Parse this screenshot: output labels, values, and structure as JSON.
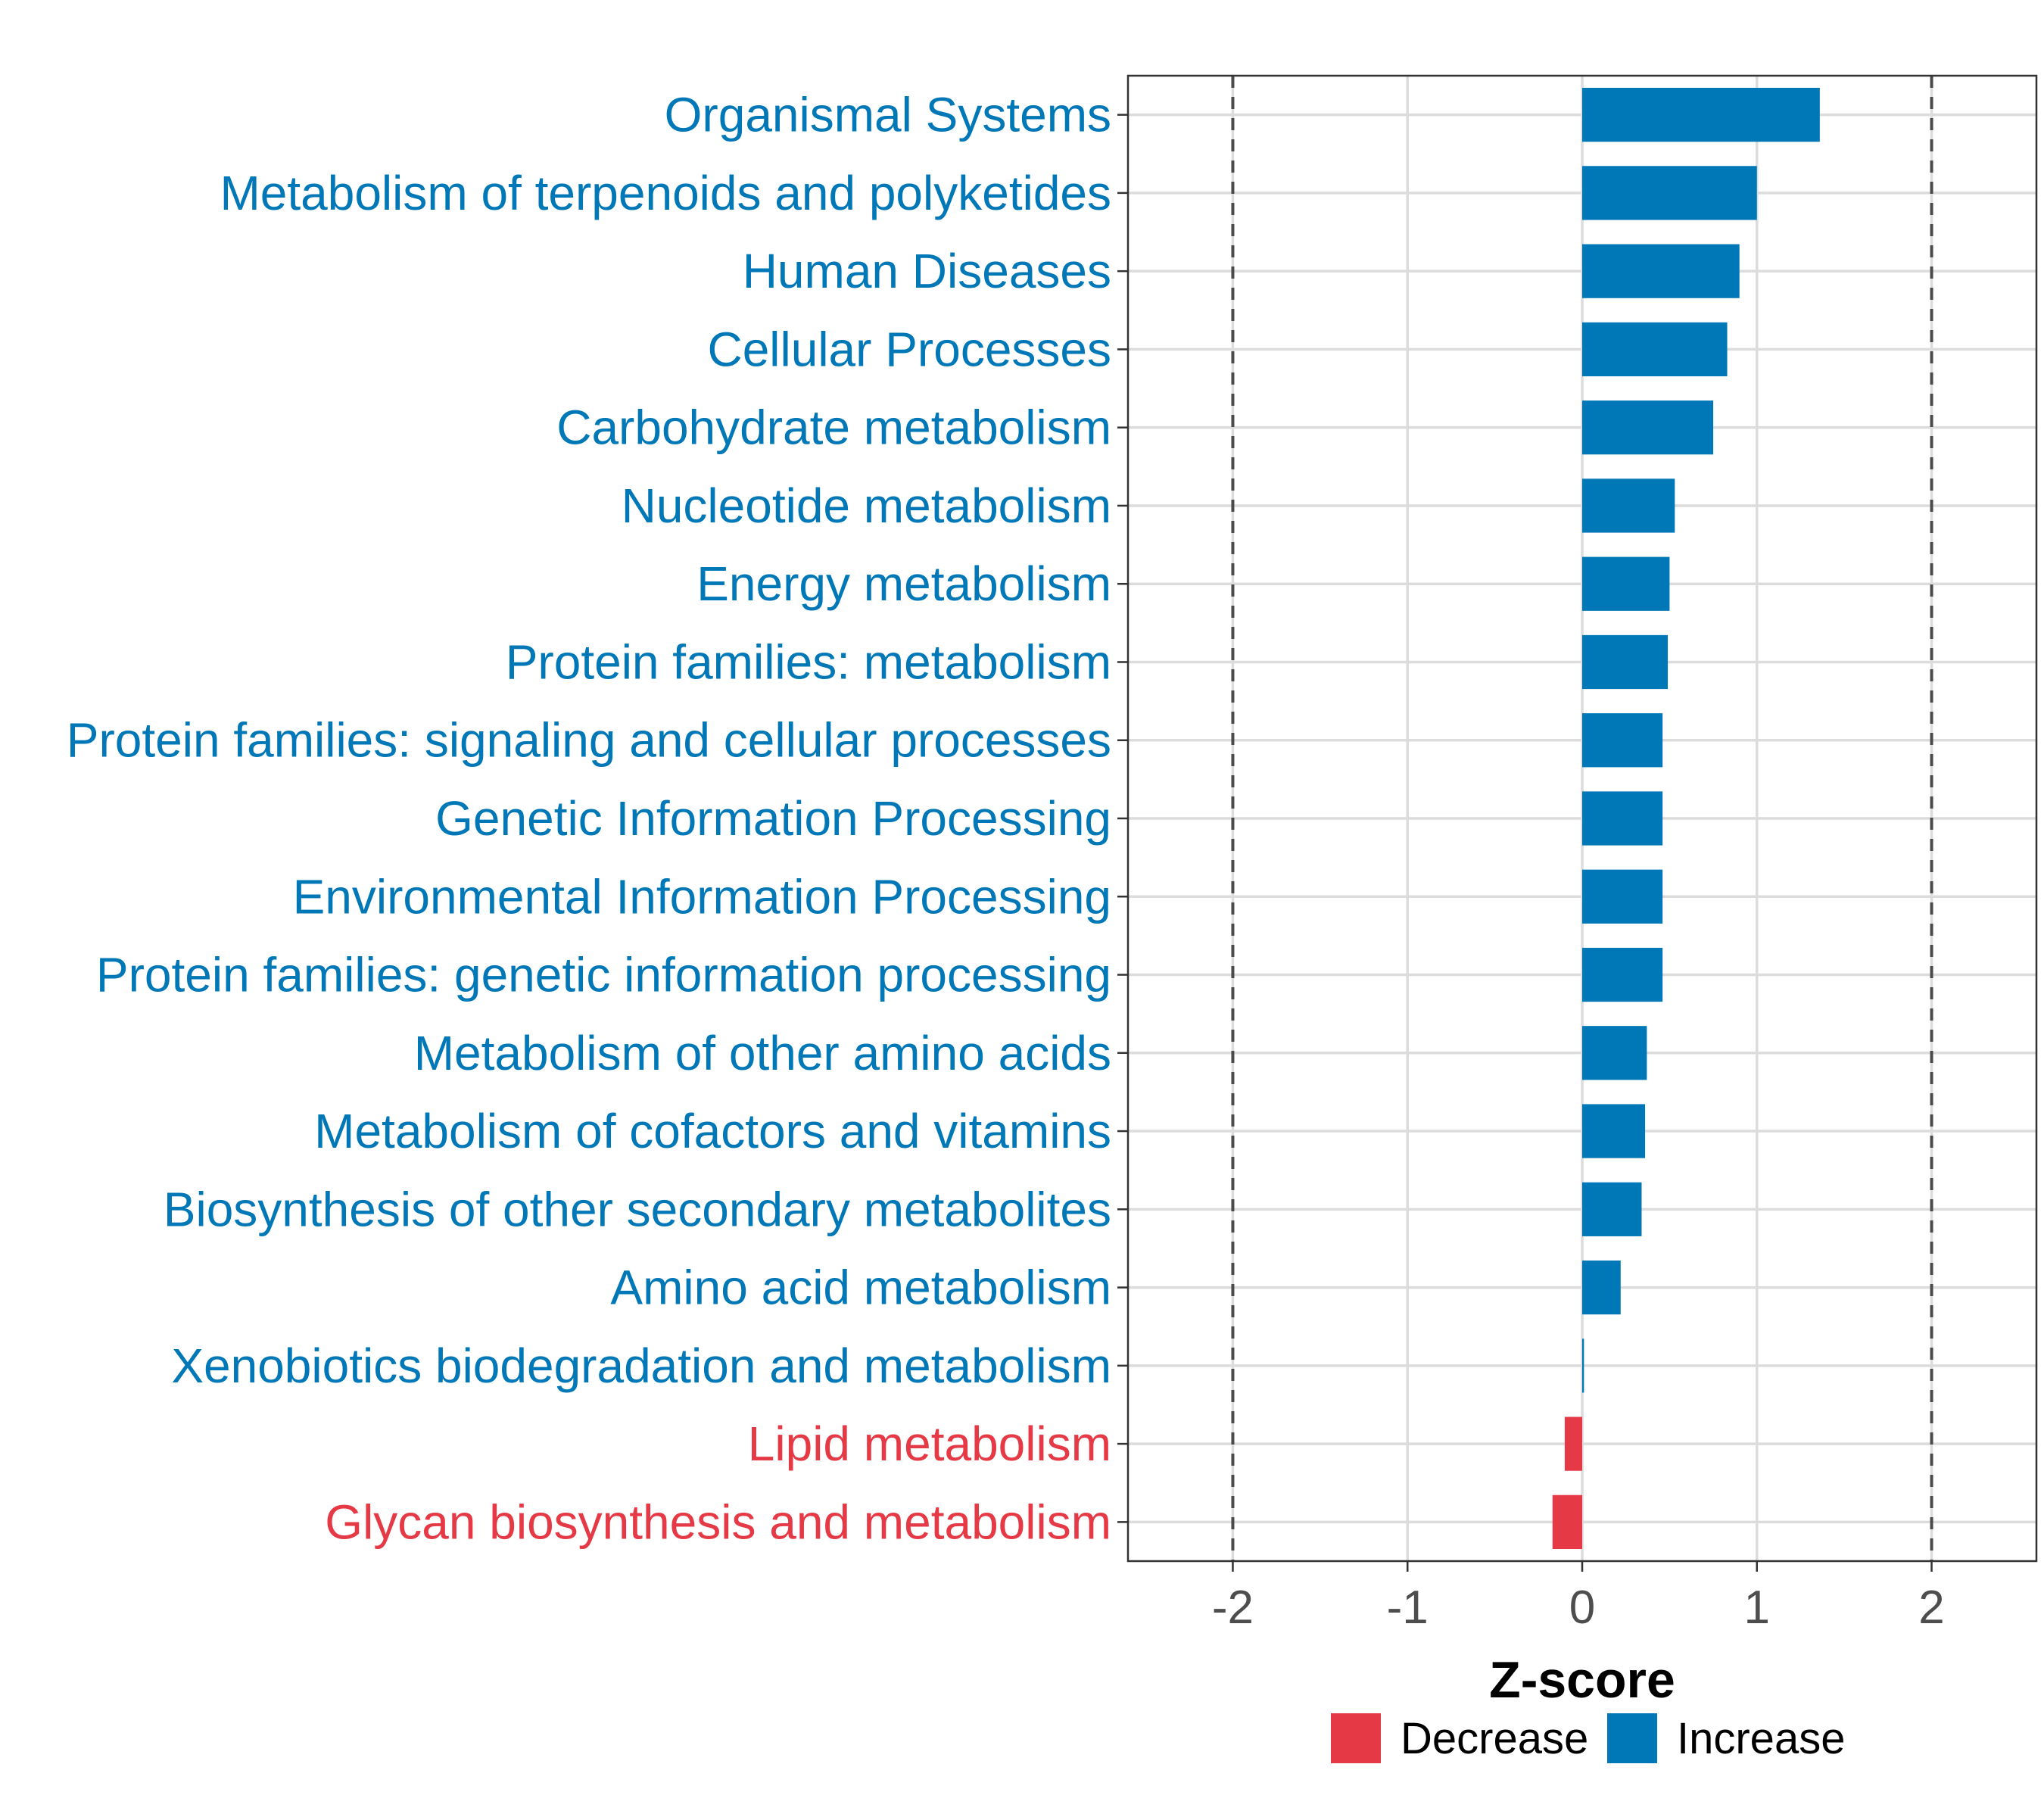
{
  "chart_data": {
    "type": "bar",
    "orientation": "horizontal",
    "categories": [
      "Organismal Systems",
      "Metabolism of terpenoids and polyketides",
      "Human Diseases",
      "Cellular Processes",
      "Carbohydrate metabolism",
      "Nucleotide metabolism",
      "Energy metabolism",
      "Protein families: metabolism",
      "Protein families: signaling and cellular processes",
      "Genetic Information Processing",
      "Environmental Information Processing",
      "Protein families: genetic information processing",
      "Metabolism of other amino acids",
      "Metabolism of cofactors and vitamins",
      "Biosynthesis of other secondary metabolites",
      "Amino acid metabolism",
      "Xenobiotics biodegradation and metabolism",
      "Lipid metabolism",
      "Glycan biosynthesis and metabolism"
    ],
    "values": [
      1.36,
      1.0,
      0.9,
      0.83,
      0.75,
      0.53,
      0.5,
      0.49,
      0.46,
      0.46,
      0.46,
      0.46,
      0.37,
      0.36,
      0.34,
      0.22,
      0.01,
      -0.1,
      -0.17
    ],
    "groups": [
      "Increase",
      "Increase",
      "Increase",
      "Increase",
      "Increase",
      "Increase",
      "Increase",
      "Increase",
      "Increase",
      "Increase",
      "Increase",
      "Increase",
      "Increase",
      "Increase",
      "Increase",
      "Increase",
      "Increase",
      "Decrease",
      "Decrease"
    ],
    "colors": {
      "Increase": "#0077b6",
      "Decrease": "#e63946"
    },
    "xlabel": "Z-score",
    "ylabel": "",
    "xlim": [
      -2.6,
      2.6
    ],
    "xticks": [
      -2,
      -1,
      0,
      1,
      2
    ],
    "xtick_labels": [
      "-2",
      "-1",
      "0",
      "1",
      "2"
    ],
    "reference_lines": [
      -2,
      2
    ],
    "grid": true,
    "legend": {
      "position": "bottom",
      "entries": [
        {
          "label": "Decrease",
          "color": "#e63946"
        },
        {
          "label": "Increase",
          "color": "#0077b6"
        }
      ]
    }
  }
}
